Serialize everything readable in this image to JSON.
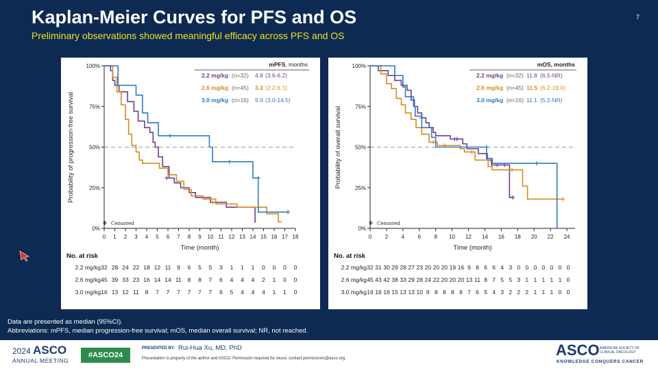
{
  "slide": {
    "title": "Kaplan-Meier Curves for PFS and OS",
    "subtitle": "Preliminary observations showed meaningful efficacy across PFS and OS",
    "number": "7"
  },
  "colors": {
    "background": "#0d2a52",
    "title": "#ffffff",
    "subtitle": "#f1e21c",
    "dose_2_2": "#6b3d8f",
    "dose_2_6": "#d98a1a",
    "dose_3_0": "#2a7bc6",
    "hashtag_bg": "#2c8c4c"
  },
  "chart_data": [
    {
      "id": "pfs",
      "type": "line",
      "step": true,
      "title": "",
      "xlabel": "Time (month)",
      "ylabel": "Probability of progression-free survival",
      "xlim": [
        0,
        18
      ],
      "ylim": [
        0,
        100
      ],
      "xticks": [
        "0",
        "1",
        "2",
        "3",
        "4",
        "5",
        "6",
        "7",
        "8",
        "9",
        "10",
        "11",
        "12",
        "13",
        "14",
        "15",
        "16",
        "17",
        "18"
      ],
      "yticks": [
        "0%",
        "25%",
        "50%",
        "75%",
        "100%"
      ],
      "reference_line": 50,
      "censored_legend": "Censored",
      "legend_header": {
        "bold": "mPFS",
        "rest": ", months"
      },
      "series": [
        {
          "name": "2.2 mg/kg",
          "n": "(n=32)",
          "median_value": "4.8",
          "median_ci": "(3.6-6.2)",
          "color": "#6b3d8f",
          "points": [
            [
              0,
              100
            ],
            [
              0.5,
              100
            ],
            [
              0.6,
              97
            ],
            [
              0.8,
              91
            ],
            [
              1,
              88
            ],
            [
              1.4,
              84
            ],
            [
              2.2,
              78
            ],
            [
              2.8,
              72
            ],
            [
              3.2,
              66
            ],
            [
              3.8,
              62
            ],
            [
              4.3,
              59
            ],
            [
              4.6,
              53
            ],
            [
              4.8,
              50
            ],
            [
              5.1,
              44
            ],
            [
              5.5,
              38
            ],
            [
              6.1,
              31
            ],
            [
              6.6,
              28
            ],
            [
              7.2,
              25
            ],
            [
              8,
              22
            ],
            [
              8.6,
              19
            ],
            [
              10,
              16
            ],
            [
              11.5,
              13
            ],
            [
              13,
              13
            ],
            [
              14.2,
              4
            ],
            [
              14.3,
              4
            ]
          ],
          "censored": [
            [
              5.9,
              31
            ],
            [
              10.5,
              16
            ]
          ]
        },
        {
          "name": "2.6 mg/kg",
          "n": "(n=45)",
          "median_value": "3.3",
          "median_ci": "(2.2-6.1)",
          "color": "#d98a1a",
          "points": [
            [
              0,
              100
            ],
            [
              0.6,
              100
            ],
            [
              0.8,
              93
            ],
            [
              1.2,
              84
            ],
            [
              1.6,
              76
            ],
            [
              2,
              67
            ],
            [
              2.3,
              58
            ],
            [
              2.6,
              51
            ],
            [
              3,
              47
            ],
            [
              3.3,
              42
            ],
            [
              3.6,
              40
            ],
            [
              5.2,
              37
            ],
            [
              6,
              33
            ],
            [
              6.8,
              29
            ],
            [
              7.5,
              24
            ],
            [
              8.2,
              20
            ],
            [
              9.3,
              18
            ],
            [
              10.5,
              15
            ],
            [
              12.5,
              13
            ],
            [
              14.6,
              13
            ],
            [
              15.3,
              9
            ],
            [
              16.4,
              4
            ],
            [
              16.7,
              4
            ]
          ],
          "censored": [
            [
              10.2,
              16
            ]
          ]
        },
        {
          "name": "3.0 mg/kg",
          "n": "(n=16)",
          "median_value": "9.9",
          "median_ci": "(3.0-14.5)",
          "color": "#2a7bc6",
          "points": [
            [
              0,
              100
            ],
            [
              1,
              100
            ],
            [
              1.3,
              88
            ],
            [
              3,
              82
            ],
            [
              3.6,
              71
            ],
            [
              4.1,
              65
            ],
            [
              5.1,
              57
            ],
            [
              9.9,
              50
            ],
            [
              10.2,
              41
            ],
            [
              14,
              31
            ],
            [
              14.5,
              10
            ],
            [
              17.3,
              10
            ]
          ],
          "censored": [
            [
              6.2,
              57
            ],
            [
              11.8,
              41
            ],
            [
              14.5,
              31
            ],
            [
              17.3,
              10
            ]
          ]
        }
      ],
      "risk_table": {
        "title": "No. at risk",
        "rows": [
          {
            "label": "2.2 mg/kg",
            "values": [
              "32",
              "28",
              "24",
              "22",
              "18",
              "12",
              "11",
              "9",
              "6",
              "5",
              "5",
              "3",
              "1",
              "1",
              "1",
              "0",
              "0",
              "0",
              "0"
            ]
          },
          {
            "label": "2.6 mg/kg",
            "values": [
              "45",
              "39",
              "33",
              "23",
              "16",
              "14",
              "14",
              "11",
              "8",
              "8",
              "7",
              "6",
              "4",
              "4",
              "4",
              "2",
              "1",
              "0",
              "0"
            ]
          },
          {
            "label": "3.0 mg/kg",
            "values": [
              "16",
              "13",
              "12",
              "11",
              "8",
              "7",
              "7",
              "7",
              "7",
              "7",
              "7",
              "6",
              "5",
              "4",
              "4",
              "4",
              "1",
              "1",
              "0"
            ]
          }
        ]
      }
    },
    {
      "id": "os",
      "type": "line",
      "step": true,
      "title": "",
      "xlabel": "Time (month)",
      "ylabel": "Probability of overall survival",
      "xlim": [
        0,
        25
      ],
      "ylim": [
        0,
        100
      ],
      "xticks": [
        "0",
        "2",
        "4",
        "6",
        "8",
        "10",
        "12",
        "14",
        "16",
        "18",
        "20",
        "22",
        "24"
      ],
      "yticks": [
        "0%",
        "25%",
        "50%",
        "75%",
        "100%"
      ],
      "reference_line": 50,
      "censored_legend": "Censored",
      "legend_header": {
        "bold": "mOS, months",
        "rest": ""
      },
      "series": [
        {
          "name": "2.2 mg/kg",
          "n": "(n=32)",
          "median_value": "11.8",
          "median_ci": "(6.5-NR)",
          "color": "#6b3d8f",
          "points": [
            [
              0,
              100
            ],
            [
              0.5,
              100
            ],
            [
              1,
              97
            ],
            [
              2.2,
              94
            ],
            [
              3,
              91
            ],
            [
              3.8,
              88
            ],
            [
              4.5,
              85
            ],
            [
              5,
              79
            ],
            [
              5.4,
              75
            ],
            [
              5.8,
              71
            ],
            [
              6.3,
              68
            ],
            [
              6.8,
              65
            ],
            [
              7.2,
              62
            ],
            [
              7.7,
              59
            ],
            [
              8,
              57
            ],
            [
              9.8,
              55
            ],
            [
              11.3,
              52
            ],
            [
              11.8,
              49
            ],
            [
              13.2,
              46
            ],
            [
              14.3,
              42
            ],
            [
              14.8,
              39
            ],
            [
              17,
              19
            ],
            [
              17.4,
              19
            ]
          ],
          "censored": [
            [
              6.3,
              68
            ],
            [
              10.3,
              55
            ],
            [
              10.6,
              55
            ],
            [
              15.5,
              39
            ],
            [
              16.4,
              39
            ],
            [
              17.4,
              19
            ]
          ]
        },
        {
          "name": "2.6 mg/kg",
          "n": "(n=45)",
          "median_value": "11.5",
          "median_ci": "(6.2-19.0)",
          "color": "#d98a1a",
          "points": [
            [
              0,
              100
            ],
            [
              0.7,
              100
            ],
            [
              1.3,
              95
            ],
            [
              2,
              89
            ],
            [
              2.6,
              86
            ],
            [
              3.2,
              80
            ],
            [
              3.8,
              76
            ],
            [
              4.3,
              71
            ],
            [
              5,
              67
            ],
            [
              5.6,
              62
            ],
            [
              6.3,
              58
            ],
            [
              7.2,
              53
            ],
            [
              8.2,
              51
            ],
            [
              11,
              49
            ],
            [
              11.5,
              47
            ],
            [
              12.8,
              42
            ],
            [
              14.4,
              38
            ],
            [
              14.9,
              36
            ],
            [
              18.6,
              26
            ],
            [
              19.2,
              18
            ],
            [
              23.5,
              18
            ]
          ],
          "censored": [
            [
              7.7,
              53
            ],
            [
              9.1,
              51
            ],
            [
              12.4,
              47
            ],
            [
              17.3,
              36
            ],
            [
              23.5,
              18
            ]
          ]
        },
        {
          "name": "3.0 mg/kg",
          "n": "(n=16)",
          "median_value": "11.1",
          "median_ci": "(5.2-NR)",
          "color": "#2a7bc6",
          "points": [
            [
              0,
              100
            ],
            [
              2.7,
              100
            ],
            [
              3,
              94
            ],
            [
              4,
              87
            ],
            [
              4.3,
              81
            ],
            [
              5.3,
              75
            ],
            [
              5.5,
              69
            ],
            [
              6.3,
              62
            ],
            [
              7.5,
              56
            ],
            [
              8,
              50
            ],
            [
              11.1,
              50
            ],
            [
              14.2,
              43
            ],
            [
              14.9,
              40
            ],
            [
              22.3,
              40
            ],
            [
              22.8,
              0
            ]
          ],
          "censored": [
            [
              14.2,
              50
            ],
            [
              20.3,
              40
            ]
          ]
        }
      ],
      "risk_table": {
        "title": "No. at risk",
        "rows": [
          {
            "label": "2.2 mg/kg",
            "values": [
              "32",
              "31",
              "30",
              "29",
              "28",
              "27",
              "23",
              "20",
              "20",
              "20",
              "19",
              "16",
              "9",
              "8",
              "6",
              "6",
              "4",
              "3",
              "0",
              "0",
              "0",
              "0",
              "0",
              "0",
              "0"
            ]
          },
          {
            "label": "2.6 mg/kg",
            "values": [
              "45",
              "43",
              "42",
              "38",
              "33",
              "29",
              "28",
              "24",
              "22",
              "20",
              "20",
              "20",
              "13",
              "11",
              "8",
              "7",
              "5",
              "5",
              "3",
              "1",
              "1",
              "1",
              "1",
              "1",
              "0"
            ]
          },
          {
            "label": "3.0 mg/kg",
            "values": [
              "16",
              "16",
              "16",
              "15",
              "13",
              "13",
              "10",
              "9",
              "8",
              "8",
              "8",
              "8",
              "7",
              "6",
              "5",
              "4",
              "3",
              "2",
              "2",
              "2",
              "1",
              "1",
              "1",
              "0",
              "0"
            ]
          }
        ]
      }
    }
  ],
  "footnotes": {
    "line1": "Data are presented as median (95%CI).",
    "line2": "Abbreviations: mPFS, median progression-free survival; mOS, median overall survival; NR, not reached."
  },
  "footer": {
    "year": "2024",
    "asco": "ASCO",
    "annual_meeting": "ANNUAL MEETING",
    "hashtag": "#ASCO24",
    "presented_by": "PRESENTED BY:",
    "presenter": "Rui-Hua Xu, MD, PhD",
    "notice": "Presentation is property of the author and ASCO. Permission required for reuse; contact permissions@asco.org.",
    "asco_right": "ASCO",
    "society": "AMERICAN SOCIETY OF CLINICAL ONCOLOGY",
    "tagline": "KNOWLEDGE CONQUERS CANCER"
  }
}
